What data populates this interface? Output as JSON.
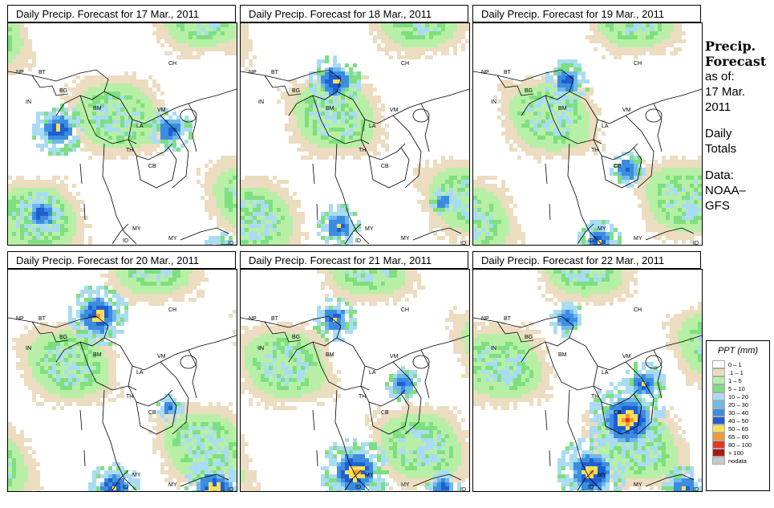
{
  "panels": [
    {
      "title": "Daily Precip. Forecast for  17 Mar., 2011",
      "seed": 17,
      "hot": [
        [
          60,
          130,
          0.6
        ],
        [
          40,
          235,
          0.5
        ],
        [
          200,
          130,
          0.5
        ],
        [
          270,
          290,
          0.6
        ]
      ]
    },
    {
      "title": "Daily Precip. Forecast for  18 Mar., 2011",
      "seed": 18,
      "hot": [
        [
          115,
          70,
          0.6
        ],
        [
          120,
          250,
          0.5
        ],
        [
          250,
          220,
          0.3
        ]
      ]
    },
    {
      "title": "Daily Precip. Forecast for  19 Mar., 2011",
      "seed": 19,
      "hot": [
        [
          115,
          70,
          0.5
        ],
        [
          190,
          180,
          0.4
        ],
        [
          155,
          270,
          0.5
        ]
      ]
    },
    {
      "title": "Daily Precip. Forecast for  20 Mar., 2011",
      "seed": 20,
      "hot": [
        [
          110,
          55,
          0.7
        ],
        [
          130,
          270,
          0.6
        ],
        [
          255,
          275,
          0.8
        ],
        [
          200,
          170,
          0.3
        ]
      ]
    },
    {
      "title": "Daily Precip. Forecast for  21 Mar., 2011",
      "seed": 21,
      "hot": [
        [
          115,
          60,
          0.5
        ],
        [
          140,
          250,
          0.8
        ],
        [
          250,
          270,
          0.4
        ],
        [
          200,
          140,
          0.4
        ]
      ]
    },
    {
      "title": "Daily Precip. Forecast for  22 Mar., 2011",
      "seed": 22,
      "hot": [
        [
          190,
          185,
          0.9
        ],
        [
          145,
          250,
          0.8
        ],
        [
          210,
          140,
          0.5
        ],
        [
          260,
          270,
          0.5
        ],
        [
          115,
          60,
          0.4
        ]
      ]
    }
  ],
  "region_labels": [
    "NP",
    "BT",
    "BG",
    "IN",
    "BM",
    "CH",
    "VM",
    "LA",
    "TH",
    "CB",
    "MY",
    "MY",
    "ID",
    "ID"
  ],
  "side_title": "Precip. Forecast",
  "side_lines": [
    "as of:",
    "17 Mar.",
    "2011",
    "Daily",
    "Totals",
    "Data:",
    "NOAA–",
    "GFS"
  ],
  "legend": {
    "title": "PPT (mm)",
    "items": [
      {
        "label": "0 – 1",
        "color": "#ffffff"
      },
      {
        "label": ".1 – 1",
        "color": "#ecdcc0"
      },
      {
        "label": "1 – 5",
        "color": "#b7efa6"
      },
      {
        "label": "5 – 10",
        "color": "#7de07e"
      },
      {
        "label": "10 – 20",
        "color": "#a9dcf3"
      },
      {
        "label": "20 – 30",
        "color": "#6fb8ea"
      },
      {
        "label": "30 – 40",
        "color": "#3c8de0"
      },
      {
        "label": "40 – 50",
        "color": "#1f5fd1"
      },
      {
        "label": "50 – 65",
        "color": "#f9df5a"
      },
      {
        "label": "65 – 80",
        "color": "#f59a2e"
      },
      {
        "label": "80 – 100",
        "color": "#e0391f"
      },
      {
        "label": "> 100",
        "color": "#b01515"
      },
      {
        "label": "nodata",
        "color": "#c8c8c8"
      }
    ]
  }
}
